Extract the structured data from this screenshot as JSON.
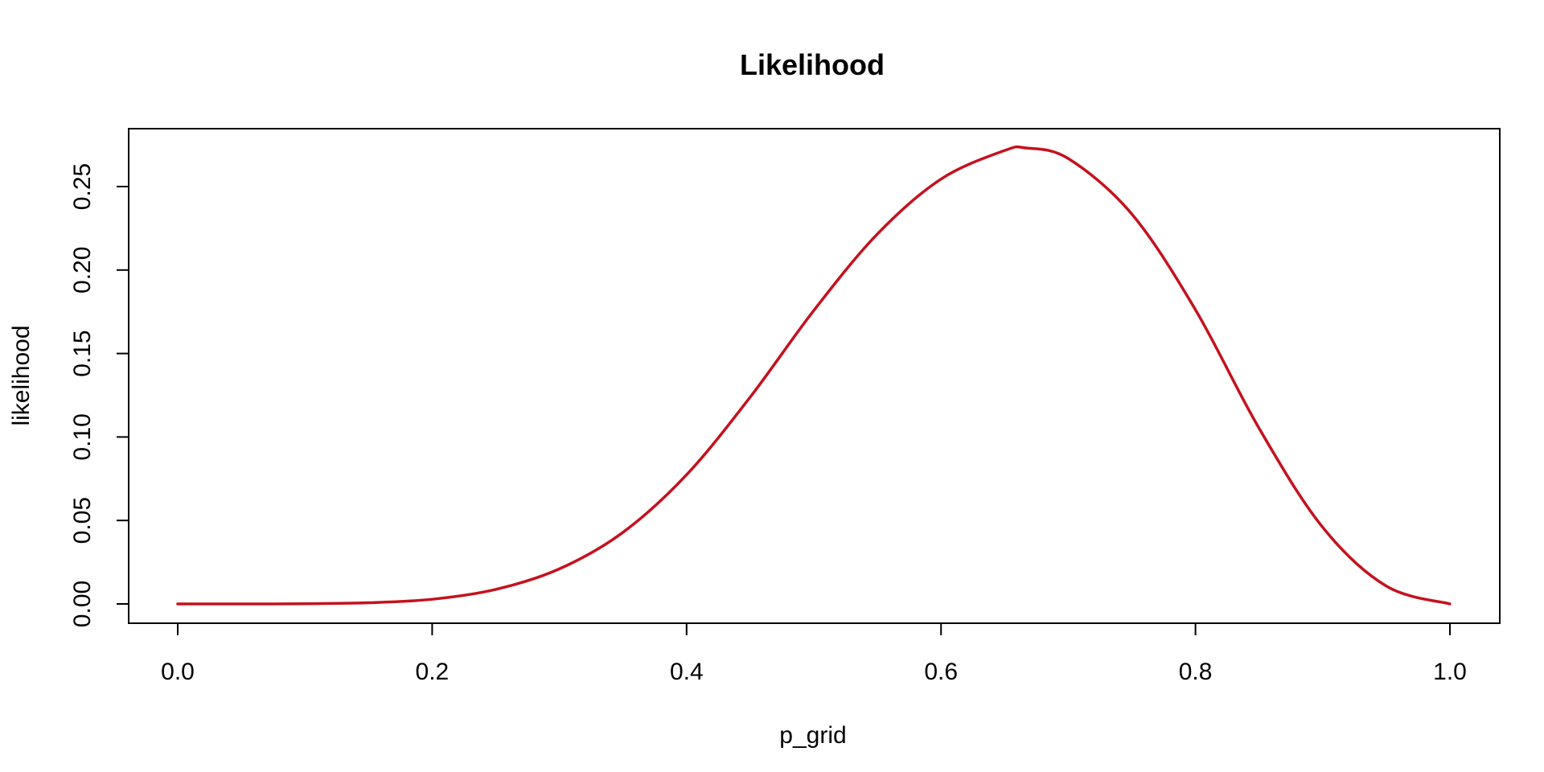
{
  "chart_data": {
    "type": "line",
    "title": "Likelihood",
    "xlabel": "p_grid",
    "ylabel": "likelihood",
    "xlim": [
      0,
      1
    ],
    "ylim": [
      0,
      0.273
    ],
    "grid": false,
    "x_ticks": [
      "0.0",
      "0.2",
      "0.4",
      "0.6",
      "0.8",
      "1.0"
    ],
    "y_ticks": [
      "0.00",
      "0.05",
      "0.10",
      "0.15",
      "0.20",
      "0.25"
    ],
    "colors": {
      "curve": "#c4121e",
      "axes": "#000000",
      "background": "#ffffff"
    },
    "series": [
      {
        "x": [
          0.0,
          0.05,
          0.1,
          0.15,
          0.2,
          0.25,
          0.3,
          0.35,
          0.4,
          0.45,
          0.5,
          0.55,
          0.6,
          0.65,
          0.6667,
          0.7,
          0.75,
          0.8,
          0.85,
          0.9,
          0.95,
          1.0
        ],
        "y": [
          0.0,
          0.0,
          0.0001,
          0.0007,
          0.0028,
          0.0087,
          0.021,
          0.0429,
          0.0774,
          0.1239,
          0.1758,
          0.2216,
          0.2545,
          0.2716,
          0.2731,
          0.2668,
          0.2335,
          0.1762,
          0.1052,
          0.0459,
          0.0107,
          0.0
        ]
      }
    ]
  }
}
